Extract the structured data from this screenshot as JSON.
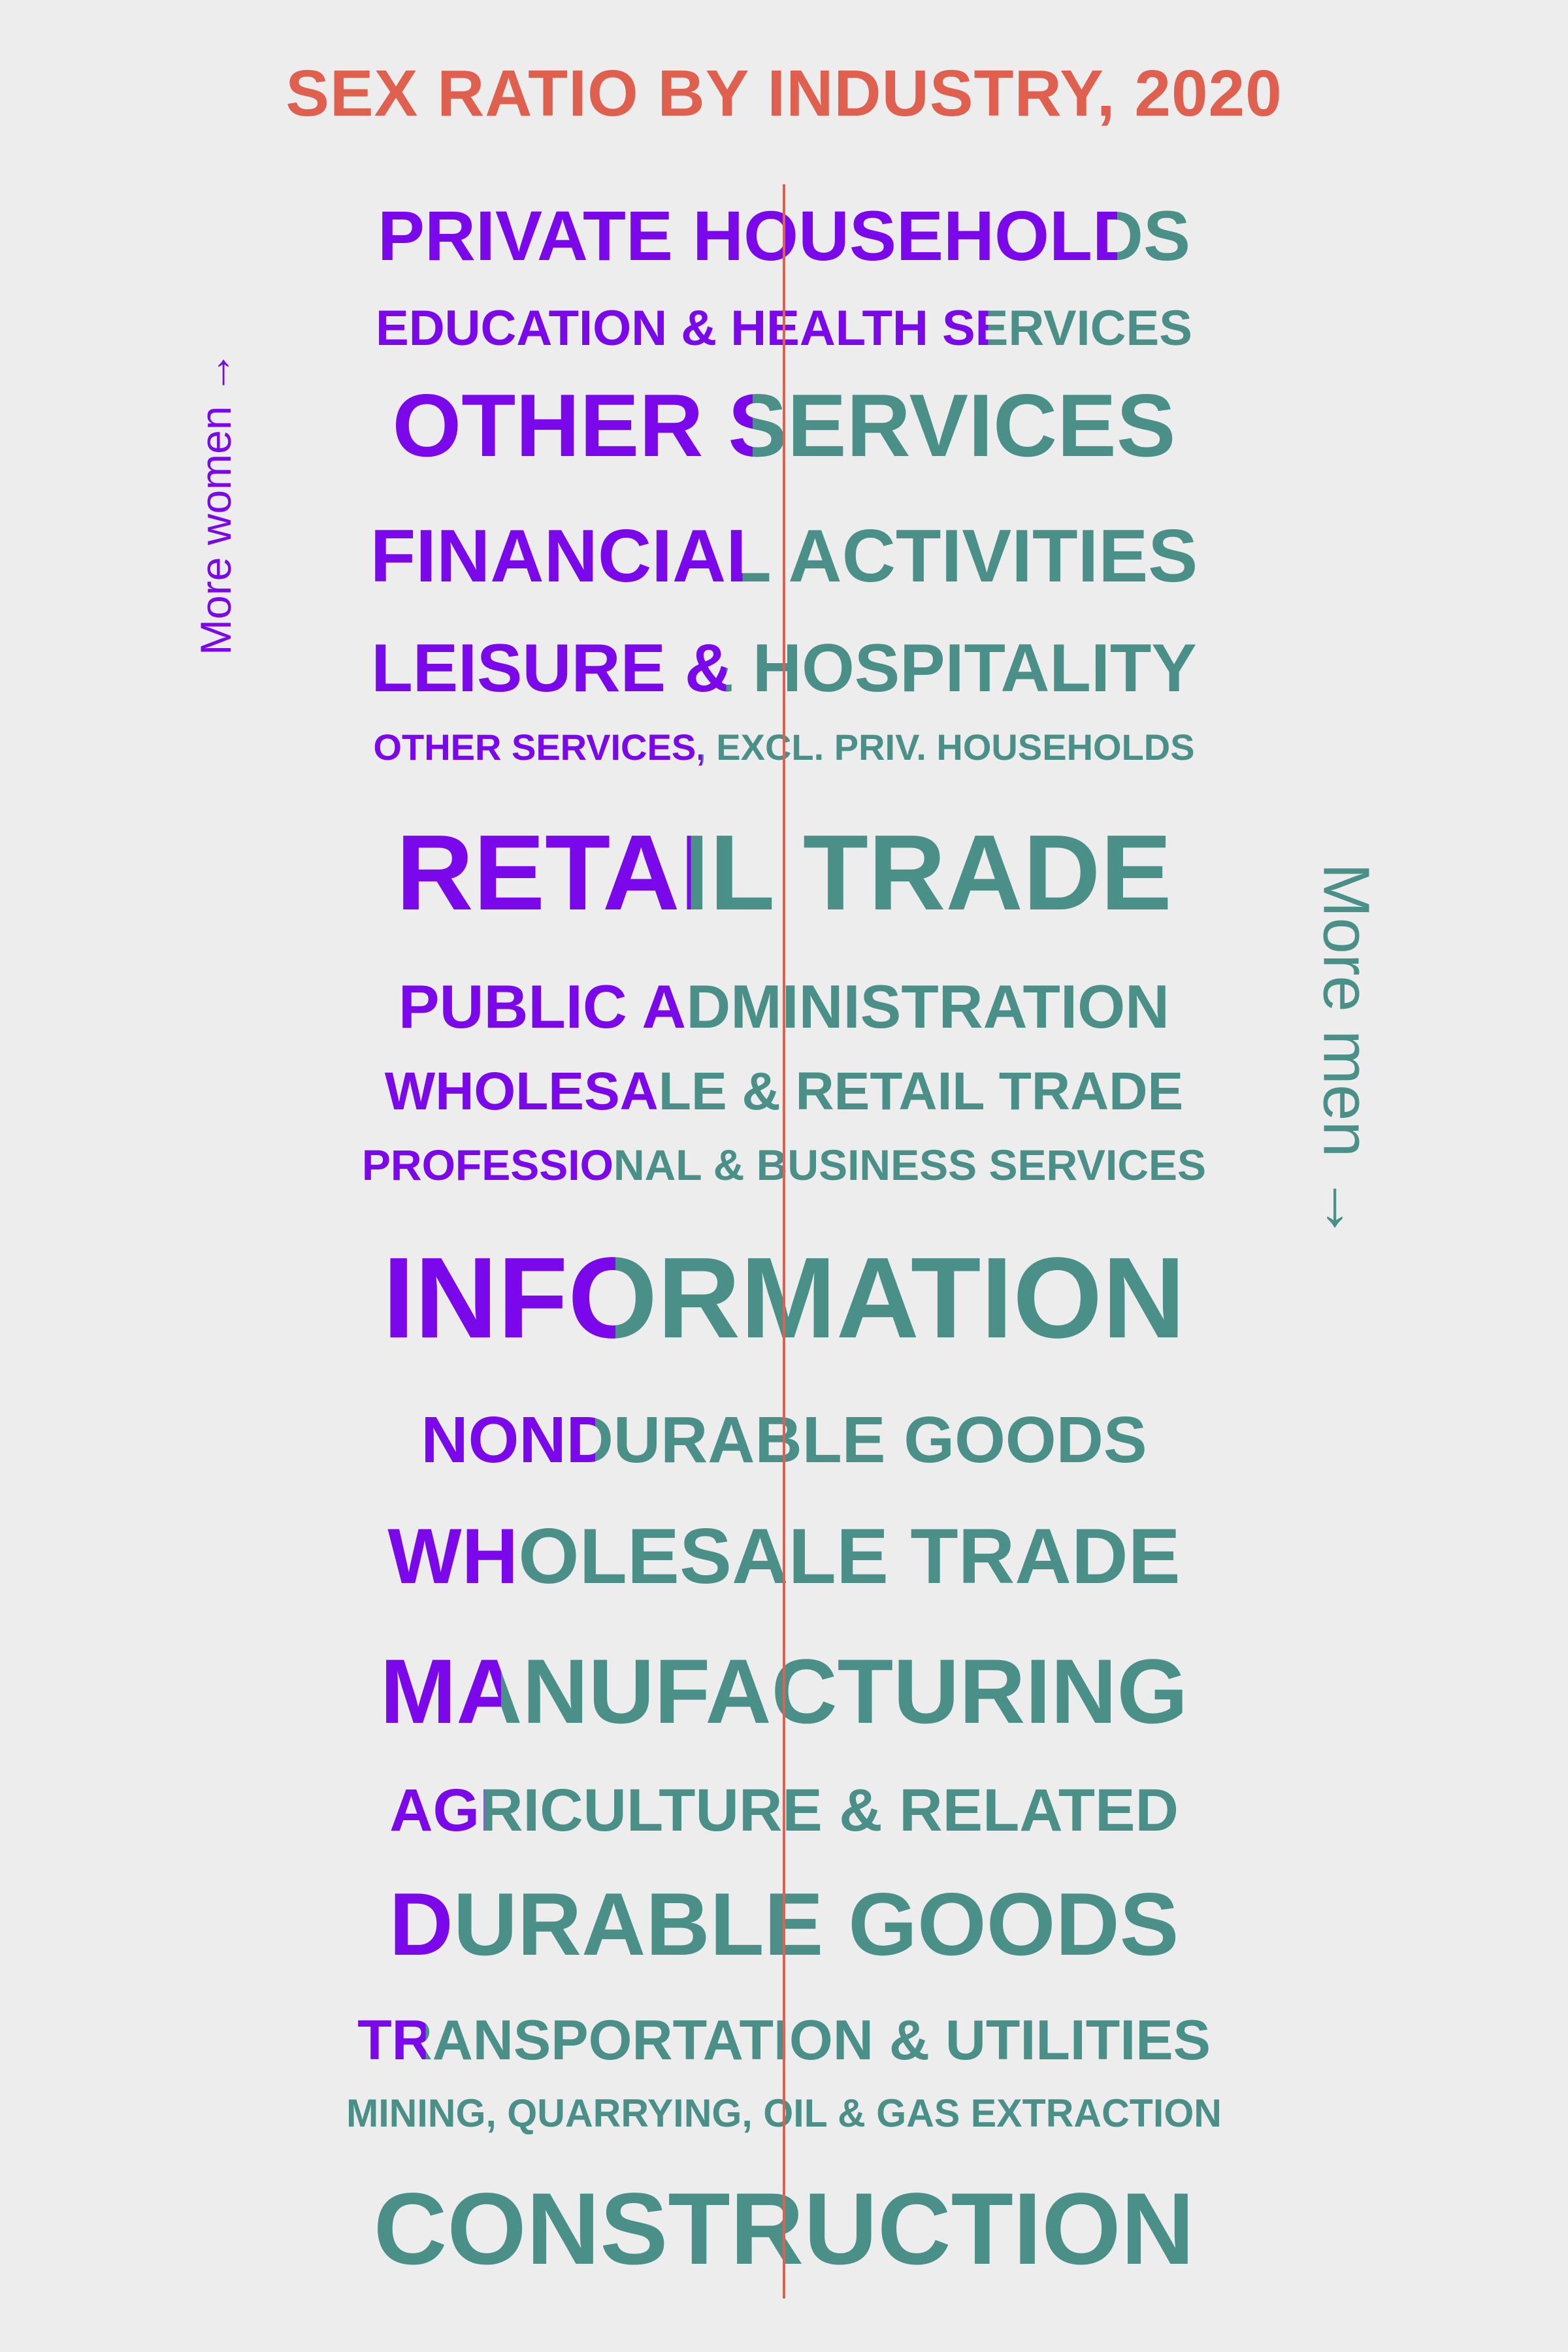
{
  "title": "SEX RATIO BY INDUSTRY, 2020",
  "labels": {
    "more_women": "More women →",
    "more_men": "More men →"
  },
  "colors": {
    "title": "#e0604f",
    "women": "#7a08ea",
    "men": "#4a9089",
    "center_line": "#e0604f",
    "background": "#ededed"
  },
  "chart_data": {
    "type": "text-bar",
    "title": "SEX RATIO BY INDUSTRY, 2020",
    "encoding": "Each industry label is colored purple for its women share and teal for its men share; a vertical line marks parity (50%).",
    "industries": [
      {
        "name": "PRIVATE HOUSEHOLDS",
        "women_share": 0.91
      },
      {
        "name": "EDUCATION & HEALTH SERVICES",
        "women_share": 0.75
      },
      {
        "name": "OTHER SERVICES",
        "women_share": 0.46
      },
      {
        "name": "FINANCIAL ACTIVITIES",
        "women_share": 0.45
      },
      {
        "name": "LEISURE & HOSPITALITY",
        "women_share": 0.43
      },
      {
        "name": "OTHER SERVICES, EXCL. PRIV. HOUSEHOLDS",
        "women_share": 0.4
      },
      {
        "name": "RETAIL TRADE",
        "women_share": 0.38
      },
      {
        "name": "PUBLIC ADMINISTRATION",
        "women_share": 0.37
      },
      {
        "name": "WHOLESALE & RETAIL TRADE",
        "women_share": 0.34
      },
      {
        "name": "PROFESSIONAL & BUSINESS SERVICES",
        "women_share": 0.3
      },
      {
        "name": "INFORMATION",
        "women_share": 0.29
      },
      {
        "name": "NONDURABLE GOODS",
        "women_share": 0.24
      },
      {
        "name": "WHOLESALE TRADE",
        "women_share": 0.16
      },
      {
        "name": "MANUFACTURING",
        "women_share": 0.15
      },
      {
        "name": "AGRICULTURE & RELATED",
        "women_share": 0.12
      },
      {
        "name": "DURABLE GOODS",
        "women_share": 0.08
      },
      {
        "name": "TRANSPORTATION & UTILITIES",
        "women_share": 0.08
      },
      {
        "name": "MINING, QUARRYING, OIL & GAS EXTRACTION",
        "women_share": 0.0
      },
      {
        "name": "CONSTRUCTION",
        "women_share": 0.0
      }
    ]
  }
}
